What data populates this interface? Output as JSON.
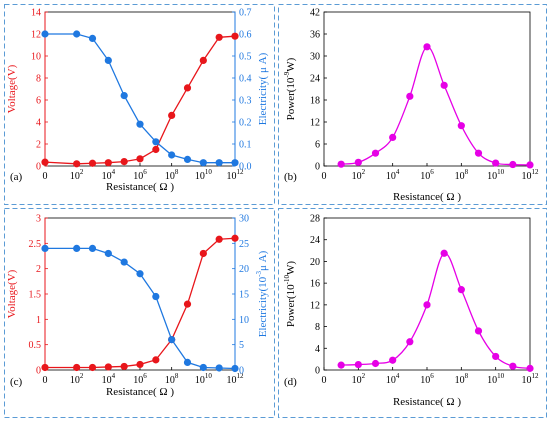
{
  "figure": {
    "panel_labels": [
      "(a)",
      "(b)",
      "(c)",
      "(d)"
    ],
    "colors": {
      "voltage": "#e8161b",
      "current": "#1f78e0",
      "power": "#e600e6",
      "border": "#5b9bd5"
    }
  },
  "chart_data": [
    {
      "id": "a",
      "type": "line",
      "xlabel": "Resistance( Ω )",
      "x_scale": "log10",
      "xlim": [
        1,
        1000000000000.0
      ],
      "xticks": [
        {
          "value": 1,
          "label": "0"
        },
        {
          "value": 100,
          "label": "10",
          "sup": "2"
        },
        {
          "value": 10000,
          "label": "10",
          "sup": "4"
        },
        {
          "value": 1000000,
          "label": "10",
          "sup": "6"
        },
        {
          "value": 100000000,
          "label": "10",
          "sup": "8"
        },
        {
          "value": 10000000000,
          "label": "10",
          "sup": "10"
        },
        {
          "value": 1000000000000,
          "label": "10",
          "sup": "12"
        }
      ],
      "ylabel": "Voltage(V)",
      "ylim": [
        0,
        14
      ],
      "yticks": [
        "0",
        "2",
        "4",
        "6",
        "8",
        "10",
        "12",
        "14"
      ],
      "y2label": "Electricity( μ A)",
      "y2lim": [
        0,
        0.7
      ],
      "y2ticks": [
        "0.0",
        "0.1",
        "0.2",
        "0.3",
        "0.4",
        "0.5",
        "0.6",
        "0.7"
      ],
      "x": [
        1,
        100,
        1000,
        10000,
        100000,
        1000000,
        10000000,
        100000000,
        1000000000,
        10000000000,
        100000000000,
        1000000000000
      ],
      "series": [
        {
          "axis": "left",
          "color": "#e8161b",
          "values": [
            0.35,
            0.2,
            0.25,
            0.3,
            0.4,
            0.65,
            1.5,
            4.6,
            7.1,
            9.6,
            11.7,
            11.8
          ]
        },
        {
          "axis": "right",
          "color": "#1f78e0",
          "values": [
            0.6,
            0.6,
            0.58,
            0.48,
            0.32,
            0.19,
            0.11,
            0.05,
            0.03,
            0.015,
            0.015,
            0.015
          ]
        }
      ]
    },
    {
      "id": "b",
      "type": "line",
      "xlabel": "Resistance( Ω )",
      "x_scale": "log10",
      "xlim": [
        1,
        1000000000000.0
      ],
      "xticks": [
        {
          "value": 1,
          "label": "0"
        },
        {
          "value": 100,
          "label": "10",
          "sup": "2"
        },
        {
          "value": 10000,
          "label": "10",
          "sup": "4"
        },
        {
          "value": 1000000,
          "label": "10",
          "sup": "6"
        },
        {
          "value": 100000000,
          "label": "10",
          "sup": "8"
        },
        {
          "value": 10000000000,
          "label": "10",
          "sup": "10"
        },
        {
          "value": 1000000000000,
          "label": "10",
          "sup": "12"
        }
      ],
      "ylabel": "Power(10",
      "ylabel_sup": "-9",
      "ylabel_tail": "W)",
      "ylim": [
        0,
        42
      ],
      "yticks": [
        "0",
        "6",
        "12",
        "18",
        "24",
        "30",
        "36",
        "42"
      ],
      "x": [
        10,
        100,
        1000,
        10000,
        100000,
        1000000,
        10000000,
        100000000,
        1000000000,
        10000000000,
        100000000000,
        1000000000000
      ],
      "series": [
        {
          "axis": "left",
          "color": "#e600e6",
          "values": [
            0.5,
            1.0,
            3.5,
            7.8,
            19.0,
            32.5,
            22.0,
            11.0,
            3.5,
            0.8,
            0.4,
            0.3
          ]
        }
      ]
    },
    {
      "id": "c",
      "type": "line",
      "xlabel": "Resistance( Ω )",
      "x_scale": "log10",
      "xlim": [
        1,
        1000000000000.0
      ],
      "xticks": [
        {
          "value": 1,
          "label": "0"
        },
        {
          "value": 100,
          "label": "10",
          "sup": "2"
        },
        {
          "value": 10000,
          "label": "10",
          "sup": "4"
        },
        {
          "value": 1000000,
          "label": "10",
          "sup": "6"
        },
        {
          "value": 100000000,
          "label": "10",
          "sup": "8"
        },
        {
          "value": 10000000000,
          "label": "10",
          "sup": "10"
        },
        {
          "value": 1000000000000,
          "label": "10",
          "sup": "12"
        }
      ],
      "ylabel": "Voltage(V)",
      "ylim": [
        0,
        3
      ],
      "yticks": [
        "0",
        "0.5",
        "1",
        "1.5",
        "2",
        "2.5",
        "3"
      ],
      "y2label": "Electricity(10",
      "y2label_sup": "-3",
      "y2label_tail": "μ A)",
      "y2lim": [
        0,
        30
      ],
      "y2ticks": [
        "0",
        "5",
        "10",
        "15",
        "20",
        "25",
        "30"
      ],
      "x": [
        1,
        100,
        1000,
        10000,
        100000,
        1000000,
        10000000,
        100000000,
        1000000000,
        10000000000,
        100000000000,
        1000000000000
      ],
      "series": [
        {
          "axis": "left",
          "color": "#e8161b",
          "values": [
            0.05,
            0.05,
            0.05,
            0.06,
            0.07,
            0.11,
            0.2,
            0.6,
            1.3,
            2.3,
            2.58,
            2.6
          ]
        },
        {
          "axis": "right",
          "color": "#1f78e0",
          "values": [
            24,
            24,
            24,
            23,
            21.3,
            19,
            14.5,
            6,
            1.5,
            0.5,
            0.4,
            0.3
          ]
        }
      ]
    },
    {
      "id": "d",
      "type": "line",
      "xlabel": "Resistance( Ω )",
      "x_scale": "log10",
      "xlim": [
        1,
        1000000000000.0
      ],
      "xticks": [
        {
          "value": 1,
          "label": "0"
        },
        {
          "value": 100,
          "label": "10",
          "sup": "2"
        },
        {
          "value": 10000,
          "label": "10",
          "sup": "4"
        },
        {
          "value": 1000000,
          "label": "10",
          "sup": "6"
        },
        {
          "value": 100000000,
          "label": "10",
          "sup": "8"
        },
        {
          "value": 10000000000,
          "label": "10",
          "sup": "10"
        },
        {
          "value": 1000000000000,
          "label": "10",
          "sup": "12"
        }
      ],
      "ylabel": "Power(10",
      "ylabel_sup": "-10",
      "ylabel_tail": "W)",
      "ylim": [
        0,
        28
      ],
      "yticks": [
        "0",
        "4",
        "8",
        "12",
        "16",
        "20",
        "24",
        "28"
      ],
      "x": [
        10,
        100,
        1000,
        10000,
        100000,
        1000000,
        10000000,
        100000000,
        1000000000,
        10000000000,
        100000000000,
        1000000000000
      ],
      "series": [
        {
          "axis": "left",
          "color": "#e600e6",
          "values": [
            0.9,
            1.0,
            1.2,
            1.8,
            5.2,
            12.0,
            21.5,
            14.8,
            7.2,
            2.5,
            0.7,
            0.3
          ]
        }
      ]
    }
  ]
}
